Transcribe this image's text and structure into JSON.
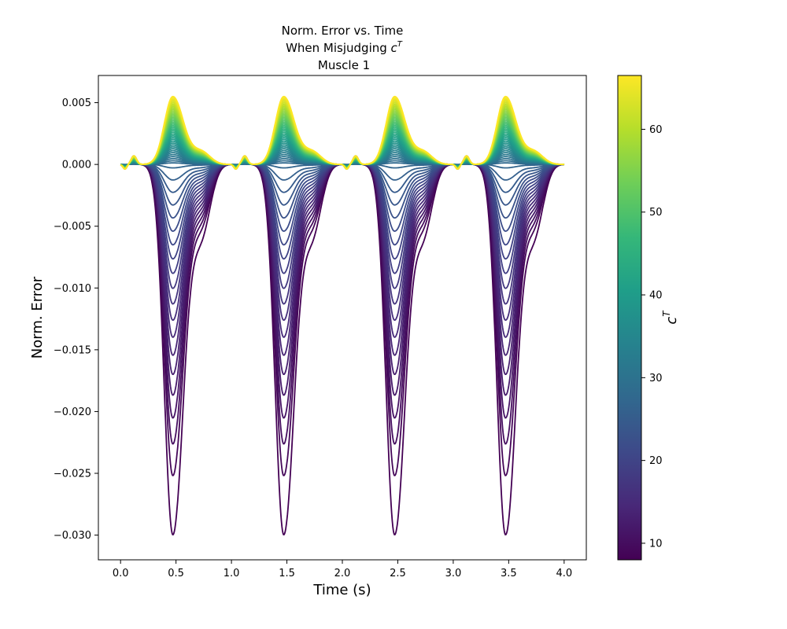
{
  "chart_data": {
    "type": "line",
    "title_lines": [
      "Norm. Error vs. Time",
      "When Misjudging ",
      "Muscle 1"
    ],
    "title_symbol": "c",
    "title_symbol_sup": "T",
    "xlabel": "Time (s)",
    "ylabel": "Norm. Error",
    "xlim": [
      -0.2,
      4.2
    ],
    "ylim": [
      -0.032,
      0.0072
    ],
    "x_ticks": [
      0.0,
      0.5,
      1.0,
      1.5,
      2.0,
      2.5,
      3.0,
      3.5,
      4.0
    ],
    "x_tick_labels": [
      "0.0",
      "0.5",
      "1.0",
      "1.5",
      "2.0",
      "2.5",
      "3.0",
      "3.5",
      "4.0"
    ],
    "y_ticks": [
      0.005,
      0.0,
      -0.005,
      -0.01,
      -0.015,
      -0.02,
      -0.025,
      -0.03
    ],
    "y_tick_labels": [
      "0.005",
      "0.000",
      "−0.005",
      "−0.010",
      "−0.015",
      "−0.020",
      "−0.025",
      "−0.030"
    ],
    "grid": false,
    "period_s": 1.0,
    "t_range": [
      0.0,
      4.0
    ],
    "series_family": {
      "parameter_name": "c^T",
      "parameter_range": [
        8,
        66.5
      ],
      "count": 60,
      "peak_error_at_min_param": -0.03,
      "peak_error_at_max_param": 0.0055,
      "peak_time_in_cycle_s": 0.47,
      "small_bump_value": 0.0007,
      "small_bump_time_in_cycle_s": 0.12
    },
    "colorbar": {
      "label": "c",
      "label_sup": "T",
      "range": [
        8,
        66.5
      ],
      "ticks": [
        10,
        20,
        30,
        40,
        50,
        60
      ],
      "tick_labels": [
        "10",
        "20",
        "30",
        "40",
        "50",
        "60"
      ],
      "colormap": "viridis"
    }
  }
}
